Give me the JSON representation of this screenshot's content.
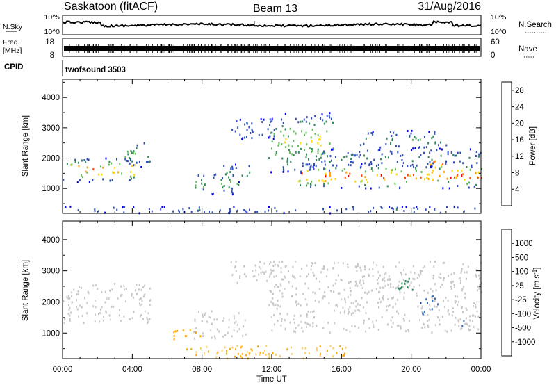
{
  "header": {
    "station": "Saskatoon (fitACF)",
    "beam": "Beam 13",
    "date": "31/Aug/2016"
  },
  "nsky_panel": {
    "left_label": "N.Sky",
    "right_label": "N.Search",
    "left_ticks": [
      "10^5",
      "10^0"
    ],
    "right_ticks": [
      "10^5",
      "10^0"
    ]
  },
  "freq_panel": {
    "left_label_1": "Freq.",
    "left_label_2": "[MHz]",
    "right_label": "Nave",
    "left_ticks": [
      "18",
      "8"
    ],
    "right_ticks": [
      "60",
      "0"
    ]
  },
  "cpid_panel": {
    "label": "CPID",
    "program": "twofsound 3503"
  },
  "chart_data": [
    {
      "type": "heatmap",
      "name": "power",
      "ylabel": "Slant Range [km]",
      "yticks": [
        "4000",
        "3000",
        "2000",
        "1000"
      ],
      "ylim": [
        180,
        4600
      ],
      "xlim": [
        0,
        24
      ],
      "colorbar_label": "Power [dB]",
      "colorbar_ticks": [
        "28",
        "24",
        "20",
        "16",
        "12",
        "8",
        "4"
      ],
      "colorbar_range": [
        0,
        30
      ],
      "colors": [
        "#0000ff",
        "#3050b8",
        "#2e8b57",
        "#5fbf55",
        "#ffd700",
        "#ffa500",
        "#ff4500",
        "#ff0000"
      ],
      "bands": [
        {
          "t0": 0.0,
          "t1": 4.2,
          "r0": 1200,
          "r1": 2000,
          "pmax": 26
        },
        {
          "t0": 3.5,
          "t1": 5.0,
          "r0": 1700,
          "r1": 2600,
          "pmax": 14
        },
        {
          "t0": 7.5,
          "t1": 10.2,
          "r0": 800,
          "r1": 1500,
          "pmax": 14
        },
        {
          "t0": 9.2,
          "t1": 10.7,
          "r0": 1200,
          "r1": 1800,
          "pmax": 12
        },
        {
          "t0": 9.5,
          "t1": 12.5,
          "r0": 2600,
          "r1": 3300,
          "pmax": 8
        },
        {
          "t0": 11.8,
          "t1": 15.5,
          "r0": 1500,
          "r1": 3500,
          "pmax": 18
        },
        {
          "t0": 13.5,
          "t1": 24.0,
          "r0": 1000,
          "r1": 1800,
          "pmax": 28
        },
        {
          "t0": 14.0,
          "t1": 24.0,
          "r0": 1700,
          "r1": 2300,
          "pmax": 10
        },
        {
          "t0": 17.0,
          "t1": 22.0,
          "r0": 2300,
          "r1": 2900,
          "pmax": 12
        },
        {
          "t0": 21.0,
          "t1": 21.8,
          "r0": 1500,
          "r1": 2200,
          "pmax": 26
        },
        {
          "t0": 0.0,
          "t1": 24.0,
          "r0": 180,
          "r1": 400,
          "pmax": 8
        }
      ]
    },
    {
      "type": "heatmap",
      "name": "velocity",
      "ylabel": "Slant Range [km]",
      "yticks": [
        "4000",
        "3000",
        "2000",
        "1000"
      ],
      "ylim": [
        180,
        4600
      ],
      "xlim": [
        0,
        24
      ],
      "colorbar_label": "Velocity [m s^-1]",
      "colorbar_ticks": [
        "1000",
        "500",
        "100",
        "25",
        "-25",
        "-100",
        "-500",
        "-1000"
      ],
      "colors": [
        "#2040a0",
        "#3070c0",
        "#2e8b57",
        "#66cc44",
        "#c8c8c8",
        "#ffd060",
        "#ffa500",
        "#ff6000",
        "#ff0000"
      ],
      "bands": [
        {
          "t0": 0.0,
          "t1": 5.0,
          "r0": 1300,
          "r1": 2600,
          "v": 0
        },
        {
          "t0": 7.5,
          "t1": 10.5,
          "r0": 800,
          "r1": 1700,
          "v": 0
        },
        {
          "t0": 9.5,
          "t1": 12.5,
          "r0": 2600,
          "r1": 3300,
          "v": 0
        },
        {
          "t0": 11.8,
          "t1": 24.0,
          "r0": 1000,
          "r1": 3300,
          "v": 0
        },
        {
          "t0": 19.0,
          "t1": 20.2,
          "r0": 2300,
          "r1": 2800,
          "v": 200
        },
        {
          "t0": 20.5,
          "t1": 21.5,
          "r0": 1600,
          "r1": 2200,
          "v": 800
        },
        {
          "t0": 22.5,
          "t1": 23.0,
          "r0": 1200,
          "r1": 1400,
          "v": 700
        },
        {
          "t0": 7.0,
          "t1": 16.5,
          "r0": 180,
          "r1": 600,
          "v": -100
        },
        {
          "t0": 6.0,
          "t1": 8.0,
          "r0": 800,
          "r1": 1100,
          "v": -400
        }
      ]
    }
  ],
  "xaxis": {
    "label": "Time UT",
    "ticks": [
      "00:00",
      "04:00",
      "08:00",
      "12:00",
      "16:00",
      "20:00",
      "00:00"
    ]
  }
}
